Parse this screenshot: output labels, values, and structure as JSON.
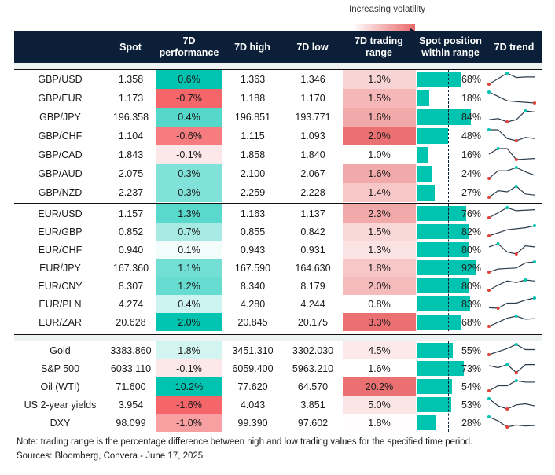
{
  "legend": {
    "label": "Increasing volatility"
  },
  "headers": {
    "spot": "Spot",
    "perf": "7D performance",
    "high": "7D high",
    "low": "7D low",
    "range": "7D trading range",
    "position": "Spot position within range",
    "trend": "7D trend"
  },
  "colors": {
    "header": "#0b2038",
    "positive": "#00c4b0",
    "negative": "#f4666a",
    "range": "#e9686a",
    "bar": "#00c4b0"
  },
  "chart_data": {
    "type": "table",
    "groups": [
      {
        "rows": [
          {
            "name": "GBP/USD",
            "spot": "1.358",
            "perf": 0.6,
            "perf_label": "0.6%",
            "high": "1.363",
            "low": "1.346",
            "range": 1.3,
            "range_label": "1.3%",
            "position": 68,
            "position_label": "68%",
            "trend": [
              0,
              0.5,
              1,
              0.6,
              0.65,
              0.65
            ]
          },
          {
            "name": "GBP/EUR",
            "spot": "1.173",
            "perf": -0.7,
            "perf_label": "-0.7%",
            "high": "1.188",
            "low": "1.170",
            "range": 1.5,
            "range_label": "1.5%",
            "position": 18,
            "position_label": "18%",
            "trend": [
              1,
              0.6,
              0.2,
              0.12,
              0.06,
              0
            ]
          },
          {
            "name": "GBP/JPY",
            "spot": "196.358",
            "perf": 0.4,
            "perf_label": "0.4%",
            "high": "196.851",
            "low": "193.771",
            "range": 1.6,
            "range_label": "1.6%",
            "position": 84,
            "position_label": "84%",
            "trend": [
              0.2,
              0.3,
              0,
              0.2,
              1,
              0.9
            ]
          },
          {
            "name": "GBP/CHF",
            "spot": "1.104",
            "perf": -0.6,
            "perf_label": "-0.6%",
            "high": "1.115",
            "low": "1.093",
            "range": 2.0,
            "range_label": "2.0%",
            "position": 48,
            "position_label": "48%",
            "trend": [
              1,
              1,
              0.2,
              0,
              0.3,
              0.2
            ]
          },
          {
            "name": "GBP/CAD",
            "spot": "1.843",
            "perf": -0.1,
            "perf_label": "-0.1%",
            "high": "1.858",
            "low": "1.840",
            "range": 1.0,
            "range_label": "1.0%",
            "position": 16,
            "position_label": "16%",
            "trend": [
              0.5,
              1,
              1,
              0,
              0.05,
              0.1
            ]
          },
          {
            "name": "GBP/AUD",
            "spot": "2.075",
            "perf": 0.3,
            "perf_label": "0.3%",
            "high": "2.100",
            "low": "2.067",
            "range": 1.6,
            "range_label": "1.6%",
            "position": 24,
            "position_label": "24%",
            "trend": [
              0,
              0.7,
              0.7,
              1,
              0.6,
              0.3
            ]
          },
          {
            "name": "GBP/NZD",
            "spot": "2.237",
            "perf": 0.3,
            "perf_label": "0.3%",
            "high": "2.259",
            "low": "2.228",
            "range": 1.4,
            "range_label": "1.4%",
            "position": 27,
            "position_label": "27%",
            "trend": [
              0,
              0.6,
              0.5,
              1,
              0.3,
              0.2
            ]
          }
        ]
      },
      {
        "rows": [
          {
            "name": "EUR/USD",
            "spot": "1.157",
            "perf": 1.3,
            "perf_label": "1.3%",
            "high": "1.163",
            "low": "1.137",
            "range": 2.3,
            "range_label": "2.3%",
            "position": 76,
            "position_label": "76%",
            "trend": [
              0,
              0.5,
              1,
              0.7,
              0.75,
              0.8
            ]
          },
          {
            "name": "EUR/GBP",
            "spot": "0.852",
            "perf": 0.7,
            "perf_label": "0.7%",
            "high": "0.855",
            "low": "0.842",
            "range": 1.5,
            "range_label": "1.5%",
            "position": 82,
            "position_label": "82%",
            "trend": [
              0,
              0.3,
              0.6,
              0.7,
              0.8,
              1
            ]
          },
          {
            "name": "EUR/CHF",
            "spot": "0.940",
            "perf": 0.1,
            "perf_label": "0.1%",
            "high": "0.943",
            "low": "0.931",
            "range": 1.3,
            "range_label": "1.3%",
            "position": 80,
            "position_label": "80%",
            "trend": [
              0.7,
              1,
              0.2,
              0,
              0.8,
              0.7
            ]
          },
          {
            "name": "EUR/JPY",
            "spot": "167.360",
            "perf": 1.1,
            "perf_label": "1.1%",
            "high": "167.590",
            "low": "164.630",
            "range": 1.8,
            "range_label": "1.8%",
            "position": 92,
            "position_label": "92%",
            "trend": [
              0,
              0.3,
              0.35,
              0.4,
              0.9,
              1
            ]
          },
          {
            "name": "EUR/CNY",
            "spot": "8.307",
            "perf": 1.2,
            "perf_label": "1.2%",
            "high": "8.340",
            "low": "8.179",
            "range": 2.0,
            "range_label": "2.0%",
            "position": 80,
            "position_label": "80%",
            "trend": [
              0,
              0.5,
              0.9,
              0.75,
              1,
              0.9
            ]
          },
          {
            "name": "EUR/PLN",
            "spot": "4.274",
            "perf": 0.4,
            "perf_label": "0.4%",
            "high": "4.280",
            "low": "4.244",
            "range": 0.8,
            "range_label": "0.8%",
            "position": 83,
            "position_label": "83%",
            "trend": [
              0.05,
              0,
              0.5,
              0.5,
              0.8,
              1
            ]
          },
          {
            "name": "EUR/ZAR",
            "spot": "20.628",
            "perf": 2.0,
            "perf_label": "2.0%",
            "high": "20.845",
            "low": "20.175",
            "range": 3.3,
            "range_label": "3.3%",
            "position": 68,
            "position_label": "68%",
            "trend": [
              0,
              0.4,
              0.8,
              1,
              0.7,
              0.75
            ]
          }
        ]
      },
      {
        "rows": [
          {
            "name": "Gold",
            "spot": "3383.860",
            "perf": 1.8,
            "perf_label": "1.8%",
            "high": "3451.310",
            "low": "3302.030",
            "range": 4.5,
            "range_label": "4.5%",
            "position": 55,
            "position_label": "55%",
            "trend": [
              0,
              0.3,
              0.6,
              1,
              0.5,
              0.5
            ]
          },
          {
            "name": "S&P 500",
            "spot": "6033.110",
            "perf": -0.1,
            "perf_label": "-0.1%",
            "high": "6059.400",
            "low": "5963.210",
            "range": 1.6,
            "range_label": "1.6%",
            "position": 73,
            "position_label": "73%",
            "trend": [
              0.7,
              0.5,
              0.8,
              0,
              0.8,
              0.8
            ]
          },
          {
            "name": "Oil (WTI)",
            "spot": "71.600",
            "perf": 10.2,
            "perf_label": "10.2%",
            "high": "77.620",
            "low": "64.570",
            "range": 20.2,
            "range_label": "20.2%",
            "position": 54,
            "position_label": "54%",
            "trend": [
              0,
              0.5,
              0.5,
              1,
              0.85,
              0.85
            ]
          },
          {
            "name": "US 2-year yields",
            "spot": "3.954",
            "perf": -1.6,
            "perf_label": "-1.6%",
            "high": "4.043",
            "low": "3.851",
            "range": 5.0,
            "range_label": "5.0%",
            "position": 53,
            "position_label": "53%",
            "trend": [
              1,
              0.3,
              0,
              0.4,
              0.5,
              0.3
            ]
          },
          {
            "name": "DXY",
            "spot": "98.099",
            "perf": -1.0,
            "perf_label": "-1.0%",
            "high": "99.390",
            "low": "97.602",
            "range": 1.8,
            "range_label": "1.8%",
            "position": 28,
            "position_label": "28%",
            "trend": [
              1,
              0.6,
              0,
              0.2,
              0.1,
              0.15
            ]
          }
        ]
      }
    ]
  },
  "footer": {
    "note": "Note: trading range is the percentage difference between high and low trading values for the specified time period.",
    "sources": "Sources: Bloomberg, Convera - June 17, 2025"
  }
}
